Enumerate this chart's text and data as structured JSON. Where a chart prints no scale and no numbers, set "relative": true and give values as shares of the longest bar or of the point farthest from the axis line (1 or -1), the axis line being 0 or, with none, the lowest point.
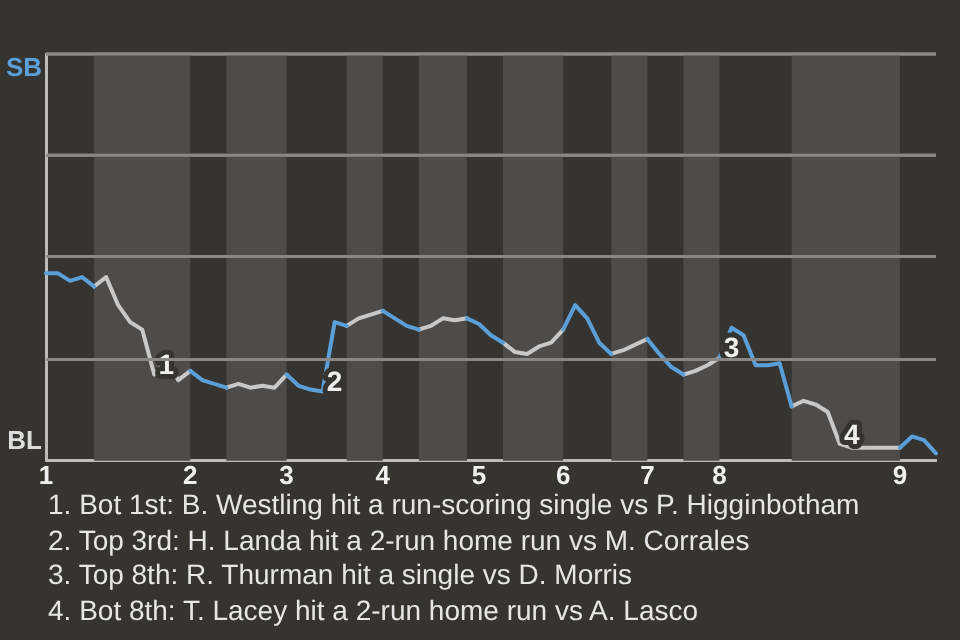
{
  "chart_data": {
    "type": "line",
    "relative": true,
    "categories": [
      "1",
      null,
      null,
      null,
      null,
      null,
      null,
      null,
      null,
      null,
      null,
      null,
      "2",
      null,
      null,
      null,
      null,
      null,
      null,
      null,
      "3",
      null,
      null,
      null,
      null,
      null,
      null,
      null,
      "4",
      null,
      null,
      null,
      null,
      null,
      null,
      null,
      "5",
      null,
      null,
      null,
      null,
      null,
      null,
      "6",
      null,
      null,
      null,
      null,
      null,
      null,
      "7",
      null,
      null,
      null,
      null,
      null,
      "8",
      null,
      null,
      null,
      null,
      null,
      null,
      null,
      null,
      null,
      null,
      null,
      null,
      null,
      null,
      "9",
      null,
      null,
      null
    ],
    "series": [
      {
        "color": "#5b9fd8",
        "values": [
          1,
          1,
          0.96,
          0.98,
          0.93,
          null,
          null,
          null,
          null,
          null,
          null,
          null,
          0.48,
          0.43,
          0.41,
          0.39,
          null,
          null,
          null,
          null,
          0.46,
          0.4,
          0.38,
          0.37,
          0.74,
          0.72,
          null,
          null,
          0.8,
          0.76,
          0.72,
          0.7,
          null,
          null,
          null,
          0.76,
          0.73,
          0.67,
          0.63,
          null,
          null,
          null,
          null,
          0.7,
          0.83,
          0.76,
          0.63,
          0.57,
          null,
          null,
          0.65,
          0.57,
          0.5,
          0.46,
          null,
          null,
          0.55,
          0.71,
          0.67,
          0.51,
          0.51,
          0.52,
          0.29,
          null,
          null,
          null,
          null,
          null,
          null,
          null,
          null,
          0.07,
          0.13,
          0.11,
          0.04
        ]
      },
      {
        "color": "#c8c8c8",
        "values": [
          null,
          null,
          null,
          null,
          0.93,
          0.98,
          0.83,
          0.74,
          0.7,
          0.46,
          0.54,
          0.43,
          0.48,
          null,
          null,
          0.39,
          0.41,
          0.39,
          0.4,
          0.39,
          0.46,
          null,
          null,
          null,
          null,
          0.72,
          0.76,
          0.78,
          0.8,
          null,
          null,
          0.7,
          0.72,
          0.76,
          0.75,
          0.76,
          null,
          null,
          0.63,
          0.58,
          0.57,
          0.61,
          0.63,
          0.7,
          null,
          null,
          null,
          0.57,
          0.59,
          0.62,
          0.65,
          null,
          null,
          0.46,
          0.48,
          0.51,
          0.55,
          null,
          null,
          null,
          null,
          null,
          0.29,
          0.32,
          0.3,
          0.26,
          0.09,
          0.07,
          0.07,
          0.07,
          0.07,
          0.07,
          null,
          null,
          null
        ]
      }
    ],
    "ref_lines": [
      {
        "axis": "y",
        "value": 0.54,
        "color": "#8a8886"
      },
      {
        "axis": "y",
        "value": 1.09,
        "color": "#8a8886"
      },
      {
        "axis": "y",
        "value": 1.63,
        "color": "#8a8886"
      },
      {
        "axis": "y",
        "value": 2.17,
        "color": "#8a8886"
      }
    ],
    "annotations": [
      "SB",
      "BL",
      {
        "text": "1",
        "y": 0.46
      },
      {
        "text": "2",
        "y": 0.37
      },
      {
        "text": "3",
        "y": 0.55
      },
      {
        "text": "4",
        "y": 0.09
      },
      "1. Bot 1st: B. Westling hit a run-scoring single vs P. Higginbotham",
      "2. Top 3rd: H. Landa hit a 2-run home run vs M. Corrales",
      "3. Top 8th: R. Thurman hit a single vs D. Morris",
      "4. Bot 8th: T. Lacey hit a 2-run home run vs A. Lasco"
    ]
  }
}
